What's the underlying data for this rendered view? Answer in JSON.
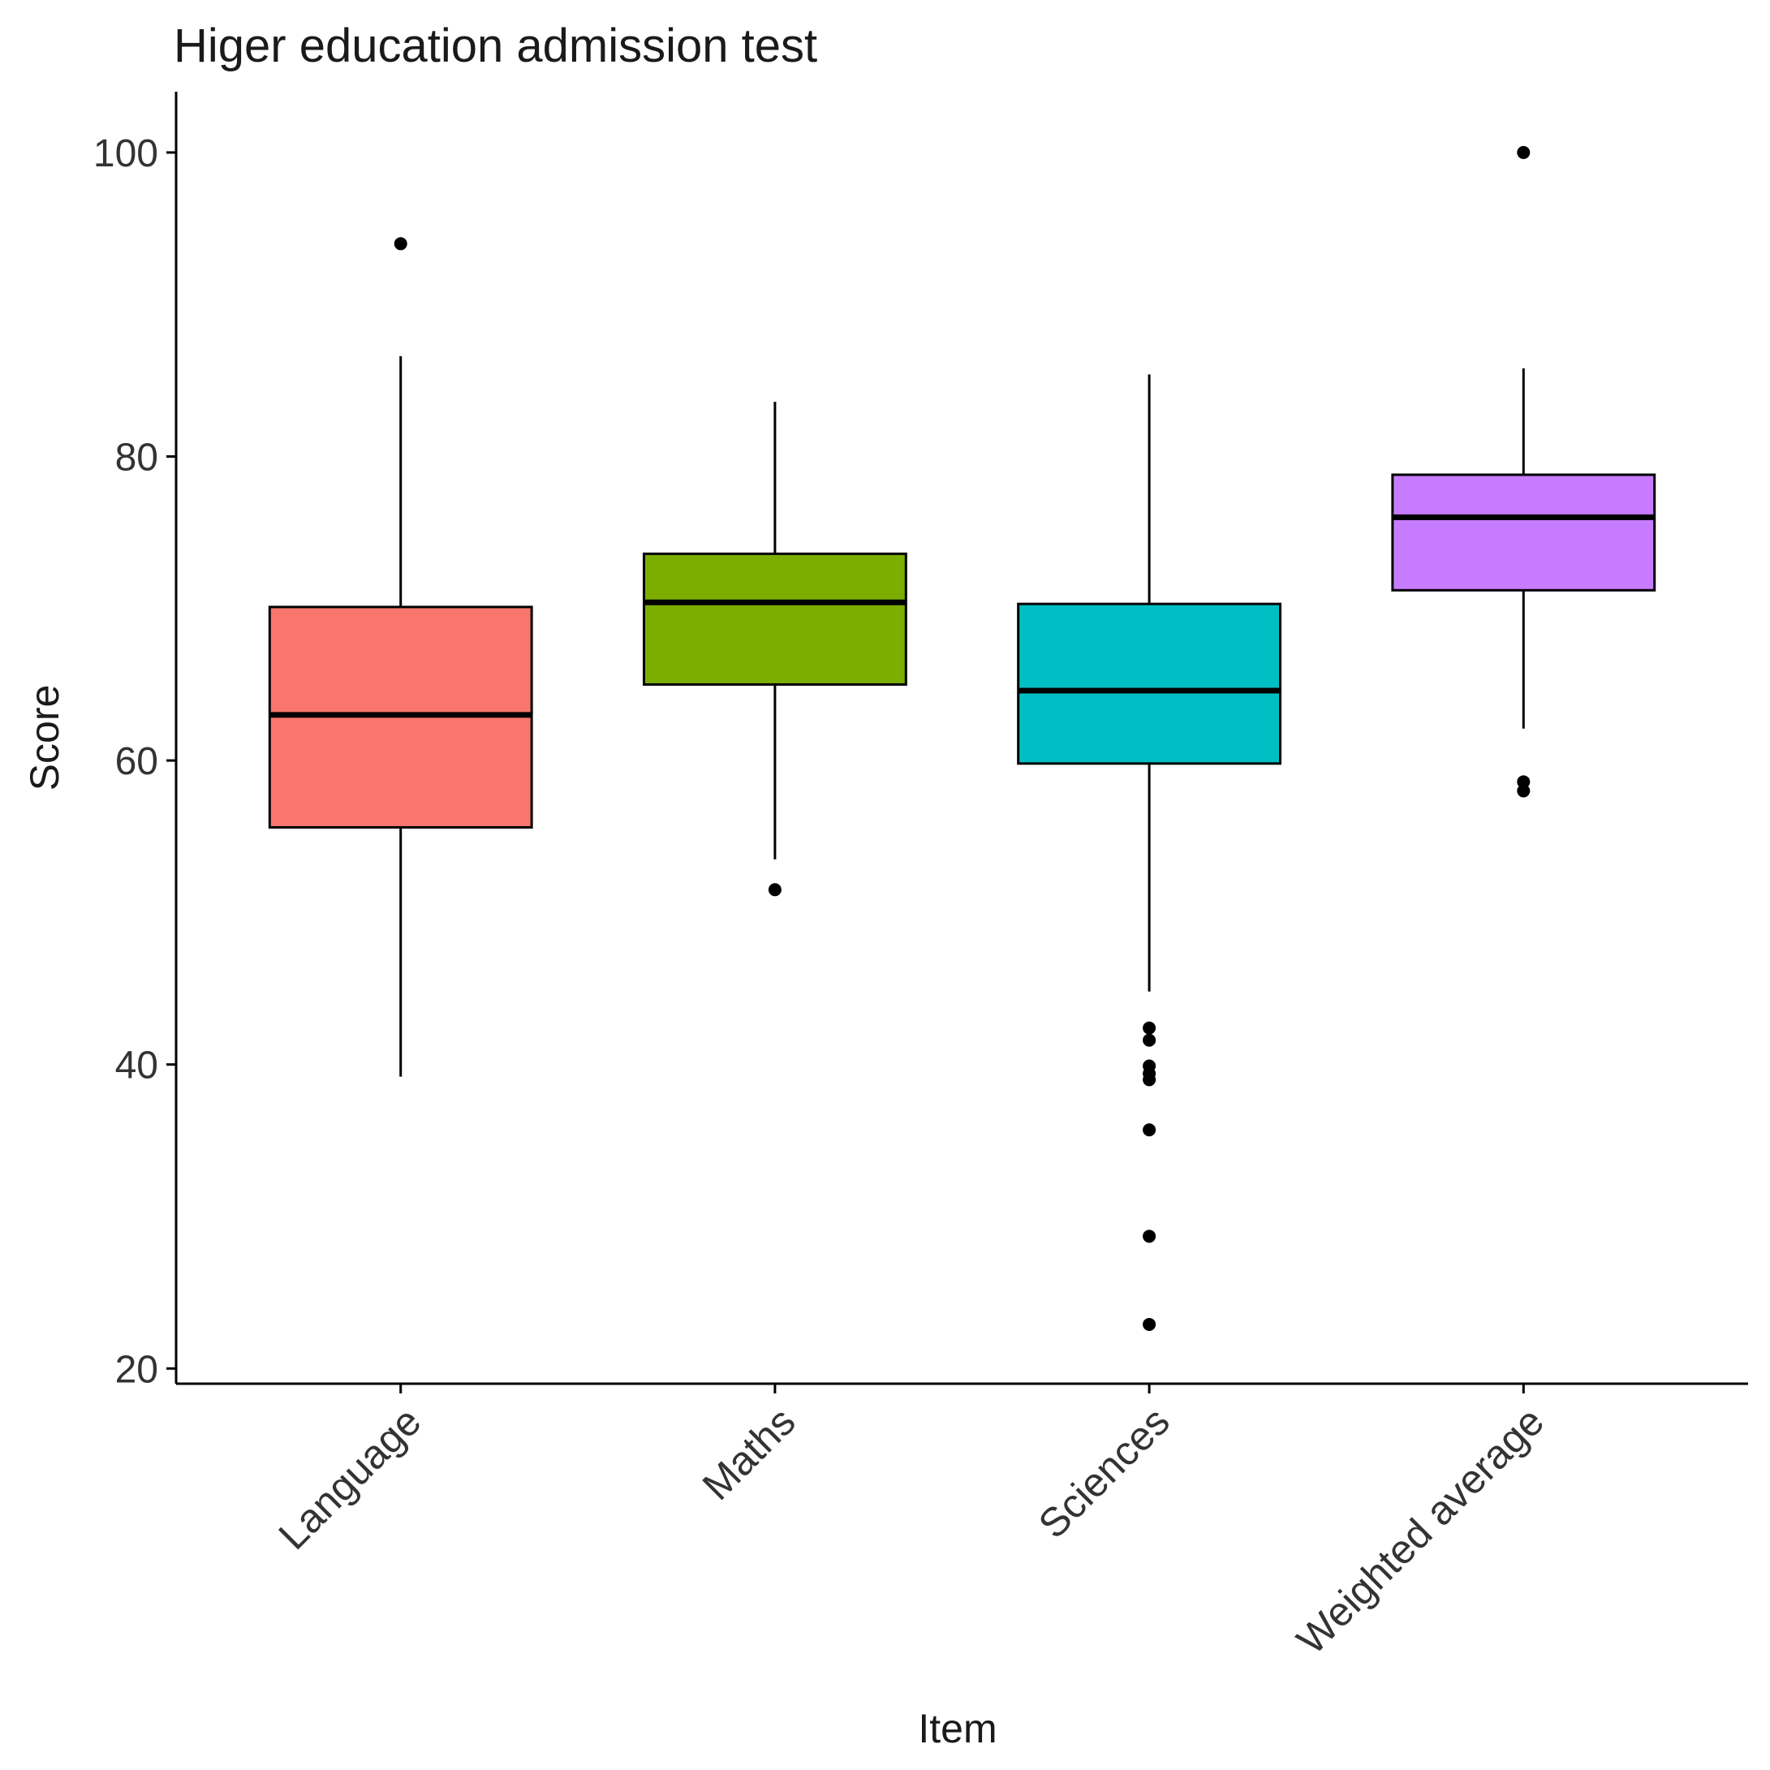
{
  "chart_data": {
    "type": "boxplot",
    "title": "Higer education admission test",
    "xlabel": "Item",
    "ylabel": "Score",
    "ylim": [
      19,
      104
    ],
    "yticks": [
      20,
      40,
      60,
      80,
      100
    ],
    "grid": false,
    "legend": "none",
    "categories": [
      "Language",
      "Maths",
      "Sciences",
      "Weighted average"
    ],
    "boxes": [
      {
        "category": "Language",
        "color": "#F8766D",
        "whisker_low": 39.2,
        "q1": 55.6,
        "median": 63.0,
        "q3": 70.1,
        "whisker_high": 86.6,
        "outliers": [
          94.0
        ]
      },
      {
        "category": "Maths",
        "color": "#7CAE00",
        "whisker_low": 53.5,
        "q1": 65.0,
        "median": 70.4,
        "q3": 73.6,
        "whisker_high": 83.6,
        "outliers": [
          51.5
        ]
      },
      {
        "category": "Sciences",
        "color": "#00BFC4",
        "whisker_low": 44.8,
        "q1": 59.8,
        "median": 64.6,
        "q3": 70.3,
        "whisker_high": 85.4,
        "outliers": [
          42.4,
          41.6,
          39.9,
          39.4,
          39.0,
          35.7,
          28.7,
          22.9
        ]
      },
      {
        "category": "Weighted average",
        "color": "#C77CFF",
        "whisker_low": 62.1,
        "q1": 71.2,
        "median": 76.0,
        "q3": 78.8,
        "whisker_high": 85.8,
        "outliers": [
          100.0,
          58.6,
          58.0
        ]
      }
    ]
  }
}
